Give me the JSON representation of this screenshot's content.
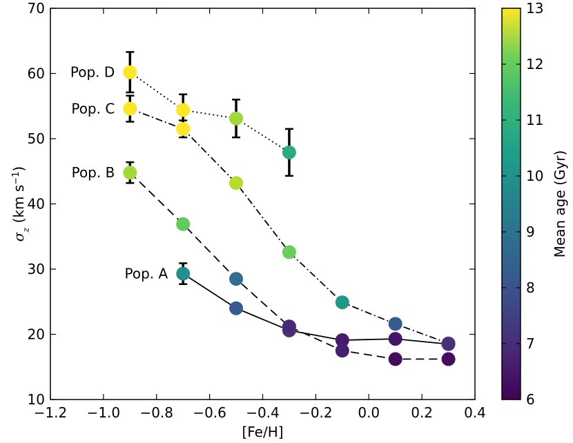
{
  "chart_data": {
    "type": "scatter",
    "xlabel": "[Fe/H]",
    "ylabel": "σ",
    "ylabel_sub": "z",
    "ylabel_units_pre": " (km s",
    "ylabel_units_sup": "−1",
    "ylabel_units_post": ")",
    "xlim": [
      -1.2,
      0.4
    ],
    "ylim": [
      10,
      70
    ],
    "xticks": [
      -1.2,
      -1.0,
      -0.8,
      -0.6,
      -0.4,
      -0.2,
      0.0,
      0.2,
      0.4
    ],
    "xtick_labels": [
      "−1.2",
      "−1.0",
      "−0.8",
      "−0.6",
      "−0.4",
      "−0.2",
      "0.0",
      "0.2",
      "0.4"
    ],
    "yticks": [
      10,
      20,
      30,
      40,
      50,
      60,
      70
    ],
    "ytick_labels": [
      "10",
      "20",
      "30",
      "40",
      "50",
      "60",
      "70"
    ],
    "colorbar": {
      "label": "Mean age (Gyr)",
      "range": [
        6,
        13
      ],
      "colormap": "viridis",
      "ticks": [
        6,
        7,
        8,
        9,
        10,
        11,
        12,
        13
      ],
      "tick_labels": [
        "6",
        "7",
        "8",
        "9",
        "10",
        "11",
        "12",
        "13"
      ]
    },
    "series": [
      {
        "name": "Pop. A",
        "linestyle": "solid",
        "points": [
          {
            "x": -0.7,
            "y": 29.3,
            "age": 9.5,
            "err": 1.6
          },
          {
            "x": -0.5,
            "y": 24.0,
            "age": 8.0
          },
          {
            "x": -0.3,
            "y": 20.6,
            "age": 7.0
          },
          {
            "x": -0.1,
            "y": 19.1,
            "age": 6.5
          },
          {
            "x": 0.1,
            "y": 19.3,
            "age": 6.4
          },
          {
            "x": 0.3,
            "y": 18.5,
            "age": 6.8
          }
        ]
      },
      {
        "name": "Pop. B",
        "linestyle": "dashed",
        "points": [
          {
            "x": -0.9,
            "y": 44.8,
            "age": 12.0,
            "err": 1.6
          },
          {
            "x": -0.7,
            "y": 36.9,
            "age": 11.3
          },
          {
            "x": -0.5,
            "y": 28.5,
            "age": 8.5
          },
          {
            "x": -0.3,
            "y": 21.2,
            "age": 6.8
          },
          {
            "x": -0.1,
            "y": 17.5,
            "age": 6.6
          },
          {
            "x": 0.1,
            "y": 16.2,
            "age": 6.2
          },
          {
            "x": 0.3,
            "y": 16.2,
            "age": 6.2
          }
        ]
      },
      {
        "name": "Pop. C",
        "linestyle": "dashdot",
        "points": [
          {
            "x": -0.9,
            "y": 54.6,
            "age": 13.0,
            "err": 2.0
          },
          {
            "x": -0.7,
            "y": 51.5,
            "age": 13.0,
            "err": 1.3
          },
          {
            "x": -0.5,
            "y": 43.2,
            "age": 12.2
          },
          {
            "x": -0.3,
            "y": 32.6,
            "age": 11.4
          },
          {
            "x": -0.1,
            "y": 24.9,
            "age": 9.7
          },
          {
            "x": 0.1,
            "y": 21.6,
            "age": 8.0
          },
          {
            "x": 0.3,
            "y": 18.6,
            "age": 7.0
          }
        ]
      },
      {
        "name": "Pop. D",
        "linestyle": "dotted",
        "points": [
          {
            "x": -0.9,
            "y": 60.2,
            "age": 13.0,
            "err": 3.1
          },
          {
            "x": -0.7,
            "y": 54.4,
            "age": 13.0,
            "err": 2.4
          },
          {
            "x": -0.5,
            "y": 53.1,
            "age": 12.0,
            "err": 2.9
          },
          {
            "x": -0.3,
            "y": 47.9,
            "age": 10.3,
            "err": 3.6
          }
        ]
      }
    ]
  }
}
